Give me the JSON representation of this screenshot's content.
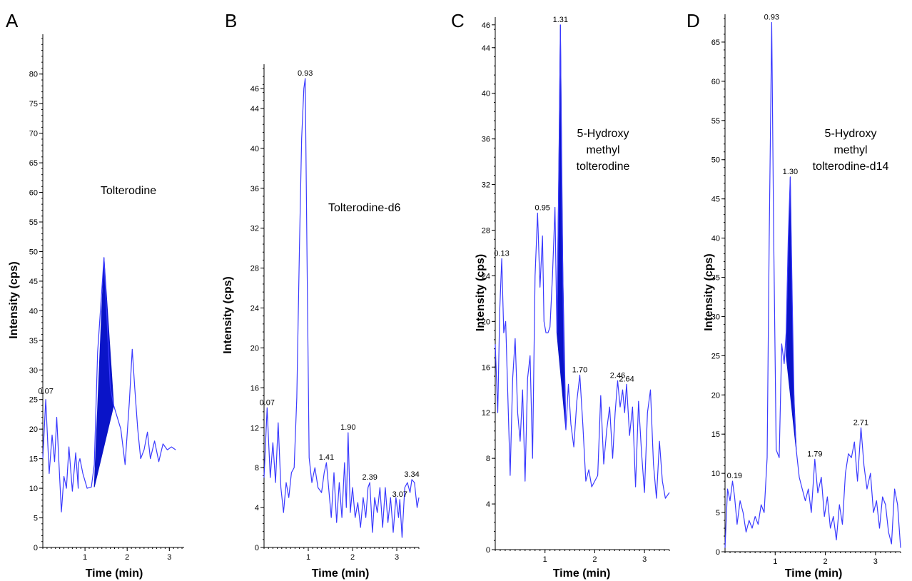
{
  "colors": {
    "trace": "#3a3aff",
    "fill": "#0a14c8"
  },
  "chart_data": [
    {
      "panel": "A",
      "type": "line",
      "annotation": [
        "Tolterodine"
      ],
      "xlabel": "Time (min)",
      "ylabel": "Intensity (cps)",
      "xlim": [
        0,
        3.35
      ],
      "ylim": [
        0,
        86
      ],
      "x_ticks": [
        1,
        2,
        3
      ],
      "y_ticks": [
        0,
        5,
        10,
        15,
        20,
        25,
        30,
        35,
        40,
        45,
        50,
        55,
        60,
        65,
        70,
        75,
        80
      ],
      "peak_labels": [
        {
          "text": "0.07",
          "x": 0.07,
          "y": 25.5
        }
      ],
      "shaded_peak": [
        [
          1.22,
          10.2
        ],
        [
          1.45,
          49.0
        ],
        [
          1.68,
          24.0
        ],
        [
          1.22,
          10.2
        ]
      ],
      "x": [
        0,
        0.07,
        0.15,
        0.22,
        0.28,
        0.33,
        0.38,
        0.44,
        0.5,
        0.56,
        0.62,
        0.7,
        0.78,
        0.84,
        0.84,
        0.88,
        0.95,
        1.05,
        1.15,
        1.22,
        1.3,
        1.45,
        1.6,
        1.68,
        1.85,
        1.95,
        2.05,
        2.12,
        2.18,
        2.25,
        2.32,
        2.4,
        2.48,
        2.55,
        2.65,
        2.75,
        2.85,
        2.95,
        3.05,
        3.15
      ],
      "y": [
        15.0,
        25.0,
        12.5,
        19.0,
        14.5,
        22.0,
        14.5,
        6.0,
        12.0,
        10.0,
        17.0,
        9.5,
        16.0,
        10.0,
        14.0,
        15.0,
        12.5,
        10.0,
        10.2,
        14.0,
        33.0,
        49.0,
        27.0,
        24.0,
        20.0,
        14.0,
        24.5,
        33.5,
        27.0,
        20.0,
        15.0,
        16.5,
        19.5,
        15.0,
        18.0,
        14.5,
        17.5,
        16.5,
        17.0,
        16.5
      ]
    },
    {
      "panel": "B",
      "type": "line",
      "annotation": [
        "Tolterodine-d6"
      ],
      "xlabel": "Time (min)",
      "ylabel": "Intensity (cps)",
      "xlim": [
        0,
        3.5
      ],
      "ylim": [
        0,
        48
      ],
      "x_ticks": [
        1,
        2,
        3
      ],
      "y_ticks": [
        0,
        4,
        8,
        12,
        16,
        20,
        24,
        28,
        32,
        36,
        40,
        44,
        46
      ],
      "peak_labels": [
        {
          "text": "0.07",
          "x": 0.07,
          "y": 14.0
        },
        {
          "text": "0.93",
          "x": 0.93,
          "y": 47.0
        },
        {
          "text": "1.41",
          "x": 1.41,
          "y": 8.5
        },
        {
          "text": "1.90",
          "x": 1.9,
          "y": 11.5
        },
        {
          "text": "2.39",
          "x": 2.39,
          "y": 6.5
        },
        {
          "text": "3.34",
          "x": 3.34,
          "y": 6.8
        },
        {
          "text": "3.07",
          "x": 3.07,
          "y": 4.8
        }
      ],
      "x": [
        0,
        0.07,
        0.14,
        0.2,
        0.26,
        0.32,
        0.38,
        0.44,
        0.5,
        0.56,
        0.62,
        0.68,
        0.74,
        0.8,
        0.85,
        0.9,
        0.93,
        0.97,
        1.02,
        1.08,
        1.15,
        1.22,
        1.3,
        1.36,
        1.41,
        1.46,
        1.52,
        1.58,
        1.64,
        1.7,
        1.76,
        1.82,
        1.86,
        1.9,
        1.95,
        2.0,
        2.06,
        2.12,
        2.18,
        2.24,
        2.3,
        2.35,
        2.39,
        2.45,
        2.5,
        2.56,
        2.62,
        2.68,
        2.74,
        2.8,
        2.86,
        2.92,
        2.98,
        3.04,
        3.07,
        3.12,
        3.18,
        3.24,
        3.3,
        3.34,
        3.4,
        3.46,
        3.5
      ],
      "y": [
        7.0,
        14.0,
        7.0,
        10.5,
        6.5,
        12.5,
        6.0,
        3.5,
        6.5,
        5.0,
        7.5,
        8.0,
        15.0,
        30.0,
        41.0,
        46.0,
        47.0,
        30.0,
        9.0,
        6.5,
        8.0,
        6.0,
        5.5,
        7.5,
        8.5,
        6.0,
        3.0,
        7.5,
        2.5,
        6.5,
        3.0,
        8.5,
        4.0,
        11.5,
        3.5,
        6.0,
        3.0,
        4.5,
        2.0,
        5.0,
        3.0,
        6.0,
        6.5,
        1.5,
        5.0,
        3.5,
        6.0,
        2.0,
        6.0,
        2.5,
        5.0,
        1.5,
        5.0,
        3.0,
        4.8,
        1.0,
        6.0,
        6.5,
        5.5,
        6.8,
        6.5,
        4.0,
        5.0
      ]
    },
    {
      "panel": "C",
      "type": "line",
      "annotation": [
        "5-Hydroxy",
        "methyl",
        "tolterodine"
      ],
      "xlabel": "Time (min)",
      "ylabel": "Intensity (cps)",
      "xlim": [
        0,
        3.5
      ],
      "ylim": [
        0,
        46.3
      ],
      "x_ticks": [
        1,
        2,
        3
      ],
      "y_ticks": [
        0,
        4,
        8,
        12,
        16,
        20,
        24,
        28,
        32,
        36,
        40,
        44,
        46
      ],
      "peak_labels": [
        {
          "text": "0.13",
          "x": 0.13,
          "y": 25.5
        },
        {
          "text": "0.95",
          "x": 0.95,
          "y": 29.5
        },
        {
          "text": "1.31",
          "x": 1.31,
          "y": 46.0
        },
        {
          "text": "1.70",
          "x": 1.7,
          "y": 15.3
        },
        {
          "text": "2.46",
          "x": 2.46,
          "y": 14.8
        },
        {
          "text": "2.64",
          "x": 2.64,
          "y": 14.5
        }
      ],
      "shaded_peak": [
        [
          1.24,
          19.0
        ],
        [
          1.31,
          46.0
        ],
        [
          1.36,
          24.0
        ],
        [
          1.42,
          10.5
        ],
        [
          1.24,
          19.0
        ]
      ],
      "x": [
        0,
        0.05,
        0.09,
        0.13,
        0.17,
        0.21,
        0.25,
        0.3,
        0.35,
        0.4,
        0.45,
        0.5,
        0.55,
        0.6,
        0.65,
        0.7,
        0.75,
        0.8,
        0.85,
        0.9,
        0.95,
        0.98,
        1.02,
        1.06,
        1.1,
        1.15,
        1.2,
        1.24,
        1.28,
        1.31,
        1.34,
        1.38,
        1.42,
        1.47,
        1.52,
        1.58,
        1.64,
        1.7,
        1.76,
        1.82,
        1.88,
        1.94,
        2.0,
        2.06,
        2.12,
        2.18,
        2.24,
        2.3,
        2.36,
        2.41,
        2.46,
        2.51,
        2.56,
        2.6,
        2.64,
        2.7,
        2.76,
        2.82,
        2.88,
        2.94,
        3.0,
        3.06,
        3.12,
        3.18,
        3.24,
        3.3,
        3.36,
        3.42,
        3.5
      ],
      "y": [
        18.0,
        12.0,
        21.0,
        25.5,
        19.0,
        20.0,
        14.0,
        6.5,
        15.0,
        18.5,
        12.0,
        9.5,
        14.0,
        6.0,
        15.0,
        17.0,
        8.0,
        24.0,
        29.5,
        23.0,
        27.5,
        20.0,
        19.0,
        19.0,
        19.5,
        24.0,
        30.0,
        19.0,
        33.0,
        46.0,
        30.0,
        17.0,
        10.5,
        14.5,
        11.0,
        9.0,
        13.0,
        15.3,
        11.0,
        6.0,
        7.0,
        5.5,
        6.0,
        6.5,
        13.5,
        7.5,
        10.5,
        12.5,
        8.0,
        12.0,
        14.8,
        12.5,
        14.0,
        12.0,
        14.5,
        10.0,
        12.5,
        5.5,
        13.0,
        8.5,
        5.0,
        12.0,
        14.0,
        7.5,
        4.5,
        9.5,
        6.0,
        4.5,
        5.0
      ]
    },
    {
      "panel": "D",
      "type": "line",
      "annotation": [
        "5-Hydroxy",
        "methyl",
        "tolterodine-d14"
      ],
      "xlabel": "Time (min)",
      "ylabel": "Intensity (cps)",
      "xlim": [
        0,
        3.5
      ],
      "ylim": [
        0,
        68
      ],
      "x_ticks": [
        1,
        2,
        3
      ],
      "y_ticks": [
        0,
        5,
        10,
        15,
        20,
        25,
        30,
        35,
        40,
        45,
        50,
        55,
        60,
        65
      ],
      "peak_labels": [
        {
          "text": "0.19",
          "x": 0.19,
          "y": 9.0
        },
        {
          "text": "0.93",
          "x": 0.93,
          "y": 67.5
        },
        {
          "text": "1.30",
          "x": 1.3,
          "y": 47.8
        },
        {
          "text": "1.79",
          "x": 1.79,
          "y": 11.8
        },
        {
          "text": "2.71",
          "x": 2.71,
          "y": 15.8
        }
      ],
      "shaded_peak": [
        [
          1.22,
          25.0
        ],
        [
          1.3,
          47.8
        ],
        [
          1.36,
          22.0
        ],
        [
          1.42,
          13.0
        ],
        [
          1.22,
          25.0
        ]
      ],
      "x": [
        0,
        0.05,
        0.1,
        0.15,
        0.19,
        0.24,
        0.3,
        0.36,
        0.42,
        0.48,
        0.54,
        0.6,
        0.66,
        0.72,
        0.78,
        0.84,
        0.88,
        0.93,
        0.97,
        1.02,
        1.08,
        1.13,
        1.18,
        1.22,
        1.26,
        1.3,
        1.34,
        1.38,
        1.42,
        1.48,
        1.54,
        1.6,
        1.66,
        1.72,
        1.79,
        1.85,
        1.92,
        1.98,
        2.04,
        2.1,
        2.16,
        2.22,
        2.28,
        2.34,
        2.4,
        2.46,
        2.52,
        2.58,
        2.64,
        2.71,
        2.77,
        2.83,
        2.9,
        2.96,
        3.02,
        3.08,
        3.14,
        3.2,
        3.26,
        3.32,
        3.38,
        3.44,
        3.5
      ],
      "y": [
        0.5,
        8.0,
        6.5,
        9.0,
        7.0,
        3.5,
        6.5,
        5.0,
        2.5,
        4.0,
        3.0,
        4.5,
        3.5,
        6.0,
        5.0,
        12.0,
        40.0,
        67.5,
        40.0,
        13.0,
        12.0,
        26.5,
        24.0,
        28.0,
        40.0,
        47.8,
        32.0,
        18.0,
        13.0,
        9.5,
        8.0,
        6.5,
        8.0,
        5.0,
        11.8,
        7.5,
        9.5,
        4.5,
        7.0,
        3.0,
        4.5,
        1.5,
        6.0,
        3.5,
        10.0,
        12.5,
        12.0,
        14.0,
        9.0,
        15.8,
        11.0,
        8.0,
        10.0,
        5.0,
        6.5,
        3.0,
        7.0,
        6.0,
        2.5,
        1.0,
        8.0,
        6.0,
        0.5
      ]
    }
  ]
}
